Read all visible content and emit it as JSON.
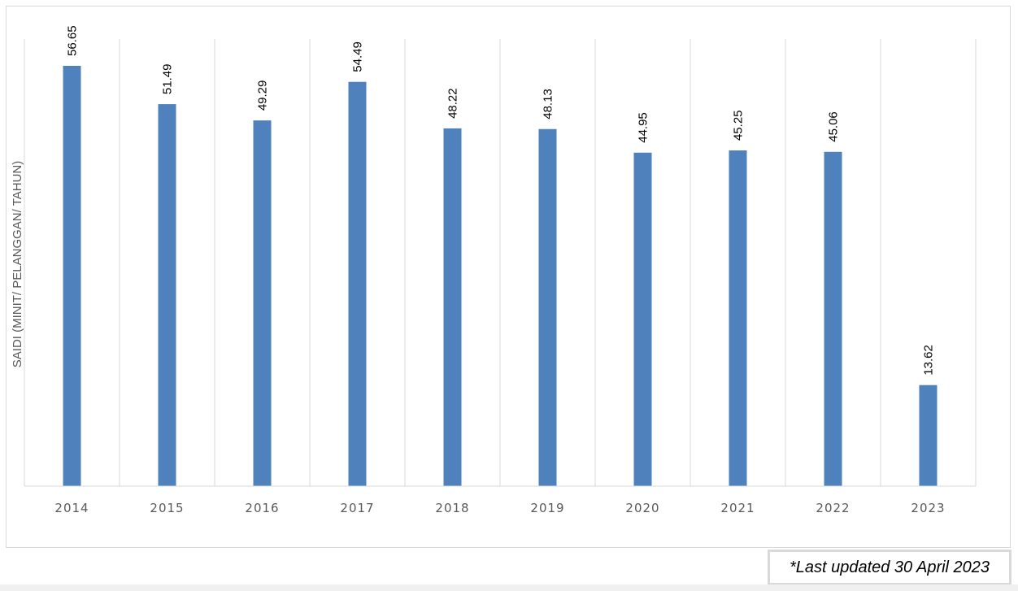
{
  "chart_data": {
    "type": "bar",
    "categories": [
      "2014",
      "2015",
      "2016",
      "2017",
      "2018",
      "2019",
      "2020",
      "2021",
      "2022",
      "2023"
    ],
    "values": [
      56.65,
      51.49,
      49.29,
      54.49,
      48.22,
      48.13,
      44.95,
      45.25,
      45.06,
      13.62
    ],
    "data_labels": [
      "56.65",
      "51.49",
      "49.29",
      "54.49",
      "48.22",
      "48.13",
      "44.95",
      "45.25",
      "45.06",
      "13.62"
    ],
    "ylabel": "SAIDI (MINIT/ PELANGGAN/ TAHUN)",
    "xlabel": "",
    "title": "",
    "ylim": [
      0,
      57
    ],
    "grid": "vertical",
    "bar_color": "#4F81BD"
  },
  "note": {
    "text": "*Last updated 30 April 2023"
  }
}
